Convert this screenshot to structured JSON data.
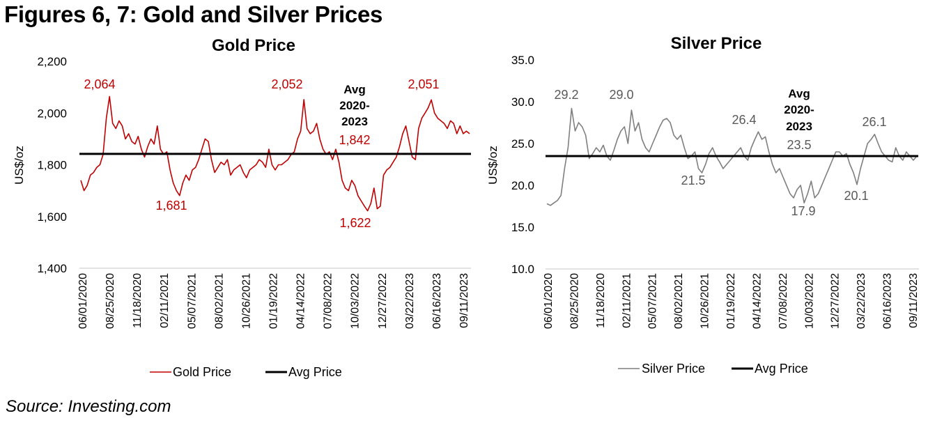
{
  "figure_title": "Figures 6, 7: Gold and Silver Prices",
  "source": "Source: Investing.com",
  "chart_data": [
    {
      "type": "line",
      "title": "Gold Price",
      "xlabel": "",
      "ylabel": "US$/oz",
      "ylim": [
        1400,
        2200
      ],
      "yticks": [
        "1,400",
        "1,600",
        "1,800",
        "2,000",
        "2,200"
      ],
      "ytick_values": [
        1400,
        1600,
        1800,
        2000,
        2200
      ],
      "xticks": [
        "06/01/2020",
        "08/25/2020",
        "11/18/2020",
        "02/11/2021",
        "05/07/2021",
        "08/02/2021",
        "10/26/2021",
        "01/19/2022",
        "04/14/2022",
        "07/08/2022",
        "10/03/2022",
        "12/27/2022",
        "03/22/2023",
        "06/16/2023",
        "09/11/2023"
      ],
      "grid": false,
      "legend_position": "bottom",
      "colors": {
        "series": "#c00000",
        "avg": "#000000"
      },
      "series": [
        {
          "name": "Gold Price",
          "values": [
            1740,
            1700,
            1720,
            1760,
            1770,
            1790,
            1800,
            1840,
            1980,
            2064,
            1960,
            1940,
            1970,
            1950,
            1900,
            1920,
            1890,
            1880,
            1910,
            1860,
            1830,
            1870,
            1900,
            1880,
            1950,
            1860,
            1840,
            1850,
            1780,
            1730,
            1700,
            1681,
            1730,
            1760,
            1740,
            1780,
            1790,
            1820,
            1860,
            1900,
            1890,
            1820,
            1770,
            1790,
            1810,
            1800,
            1820,
            1760,
            1780,
            1790,
            1800,
            1770,
            1750,
            1780,
            1790,
            1800,
            1820,
            1810,
            1790,
            1860,
            1800,
            1780,
            1800,
            1800,
            1810,
            1820,
            1840,
            1850,
            1900,
            1930,
            2052,
            1940,
            1920,
            1930,
            1960,
            1900,
            1860,
            1840,
            1850,
            1820,
            1860,
            1810,
            1740,
            1710,
            1700,
            1740,
            1720,
            1680,
            1660,
            1640,
            1622,
            1650,
            1710,
            1630,
            1640,
            1760,
            1780,
            1790,
            1810,
            1830,
            1870,
            1920,
            1950,
            1890,
            1830,
            1820,
            1940,
            1980,
            2000,
            2020,
            2051,
            2000,
            1980,
            1970,
            1960,
            1940,
            1970,
            1960,
            1920,
            1950,
            1920,
            1930,
            1920
          ]
        },
        {
          "name": "Avg Price",
          "values": [
            1842
          ]
        }
      ],
      "annotations": [
        {
          "text": "2,064",
          "value": 2064
        },
        {
          "text": "1,681",
          "value": 1681
        },
        {
          "text": "2,052",
          "value": 2052
        },
        {
          "text": "1,622",
          "value": 1622
        },
        {
          "text": "2,051",
          "value": 2051
        },
        {
          "text": "Avg",
          "bold": true
        },
        {
          "text": "2020-",
          "bold": true
        },
        {
          "text": "2023",
          "bold": true
        },
        {
          "text": "1,842",
          "value": 1842
        }
      ]
    },
    {
      "type": "line",
      "title": "Silver Price",
      "xlabel": "",
      "ylabel": "US$/oz",
      "ylim": [
        10,
        35
      ],
      "yticks": [
        "10.0",
        "15.0",
        "20.0",
        "25.0",
        "30.0",
        "35.0"
      ],
      "ytick_values": [
        10,
        15,
        20,
        25,
        30,
        35
      ],
      "xticks": [
        "06/01/2020",
        "08/25/2020",
        "11/18/2020",
        "02/11/2021",
        "05/07/2021",
        "08/02/2021",
        "10/26/2021",
        "01/19/2022",
        "04/14/2022",
        "07/08/2022",
        "10/03/2022",
        "12/27/2022",
        "03/22/2023",
        "06/16/2023",
        "09/11/2023"
      ],
      "grid": false,
      "legend_position": "bottom",
      "colors": {
        "series": "#7f7f7f",
        "avg": "#000000"
      },
      "series": [
        {
          "name": "Silver Price",
          "values": [
            17.8,
            17.6,
            17.9,
            18.2,
            18.8,
            22.0,
            24.5,
            29.2,
            26.5,
            27.5,
            27.0,
            26.0,
            23.2,
            23.8,
            24.5,
            24.0,
            24.8,
            23.5,
            23.0,
            24.2,
            25.5,
            26.5,
            27.0,
            25.0,
            29.0,
            26.5,
            27.5,
            25.5,
            24.5,
            24.0,
            25.0,
            26.0,
            27.0,
            27.8,
            28.0,
            27.5,
            26.0,
            25.5,
            26.0,
            24.5,
            23.2,
            23.5,
            24.0,
            22.0,
            21.5,
            22.5,
            23.8,
            24.5,
            23.5,
            22.8,
            22.0,
            22.5,
            23.0,
            23.5,
            24.0,
            24.5,
            23.5,
            23.0,
            24.5,
            25.5,
            26.4,
            25.5,
            25.8,
            24.0,
            22.5,
            21.5,
            22.0,
            21.0,
            20.0,
            19.0,
            18.5,
            19.5,
            20.0,
            17.9,
            19.0,
            20.5,
            18.5,
            19.0,
            20.0,
            21.0,
            22.0,
            23.0,
            24.0,
            24.0,
            23.5,
            23.8,
            22.5,
            21.5,
            20.1,
            22.0,
            23.5,
            25.0,
            25.5,
            26.1,
            25.0,
            24.0,
            23.5,
            23.0,
            22.8,
            24.5,
            23.5,
            23.0,
            24.0,
            23.5,
            23.0,
            23.5
          ]
        },
        {
          "name": "Avg Price",
          "values": [
            23.5
          ]
        }
      ],
      "annotations": [
        {
          "text": "29.2",
          "value": 29.2
        },
        {
          "text": "29.0",
          "value": 29.0
        },
        {
          "text": "21.5",
          "value": 21.5
        },
        {
          "text": "26.4",
          "value": 26.4
        },
        {
          "text": "17.9",
          "value": 17.9
        },
        {
          "text": "20.1",
          "value": 20.1
        },
        {
          "text": "26.1",
          "value": 26.1
        },
        {
          "text": "Avg",
          "bold": true
        },
        {
          "text": "2020-",
          "bold": true
        },
        {
          "text": "2023",
          "bold": true
        },
        {
          "text": "23.5",
          "value": 23.5
        }
      ]
    }
  ]
}
